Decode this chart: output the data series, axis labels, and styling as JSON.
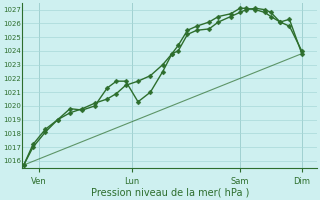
{
  "xlabel": "Pression niveau de la mer( hPa )",
  "bg_color": "#cef0f0",
  "grid_color": "#a8d8d8",
  "line_color": "#2d6e2d",
  "ylim": [
    1015.5,
    1027.5
  ],
  "yticks": [
    1016,
    1017,
    1018,
    1019,
    1020,
    1021,
    1022,
    1023,
    1024,
    1025,
    1026,
    1027
  ],
  "xtick_labels": [
    "Ven",
    "Lun",
    "Sam",
    "Dim"
  ],
  "xtick_positions": [
    0.5,
    3.5,
    7.0,
    9.0
  ],
  "xlim": [
    -0.05,
    9.5
  ],
  "series1_x": [
    0.0,
    0.3,
    0.7,
    1.1,
    1.5,
    1.9,
    2.3,
    2.7,
    3.0,
    3.3,
    3.7,
    4.1,
    4.5,
    4.8,
    5.0,
    5.3,
    5.6,
    6.0,
    6.3,
    6.7,
    7.0,
    7.2,
    7.5,
    7.8,
    8.0,
    8.3,
    8.6,
    9.0
  ],
  "series1_y": [
    1015.7,
    1017.2,
    1018.3,
    1019.0,
    1019.5,
    1019.8,
    1020.2,
    1020.5,
    1020.9,
    1021.5,
    1021.8,
    1022.2,
    1023.0,
    1023.8,
    1024.0,
    1025.2,
    1025.5,
    1025.6,
    1026.1,
    1026.5,
    1026.8,
    1027.0,
    1027.1,
    1027.0,
    1026.8,
    1026.1,
    1026.3,
    1023.8
  ],
  "series2_x": [
    0.0,
    0.3,
    0.7,
    1.1,
    1.5,
    1.9,
    2.3,
    2.7,
    3.0,
    3.3,
    3.7,
    4.1,
    4.5,
    4.8,
    5.0,
    5.3,
    5.6,
    6.0,
    6.3,
    6.7,
    7.0,
    7.2,
    7.5,
    7.8,
    8.0,
    8.3,
    8.6,
    9.0
  ],
  "series2_y": [
    1015.7,
    1017.0,
    1018.1,
    1019.0,
    1019.8,
    1019.7,
    1020.0,
    1021.3,
    1021.8,
    1021.8,
    1020.3,
    1021.0,
    1022.5,
    1023.8,
    1024.4,
    1025.5,
    1025.8,
    1026.1,
    1026.5,
    1026.7,
    1027.1,
    1027.1,
    1027.0,
    1026.8,
    1026.5,
    1026.1,
    1025.8,
    1024.0
  ],
  "series3_x": [
    0.0,
    9.0
  ],
  "series3_y": [
    1015.7,
    1023.8
  ],
  "markersize": 2.5,
  "linewidth1": 1.0,
  "linewidth2": 1.0,
  "linewidth3": 0.8,
  "xlabel_fontsize": 7,
  "ytick_fontsize": 5,
  "xtick_fontsize": 6
}
